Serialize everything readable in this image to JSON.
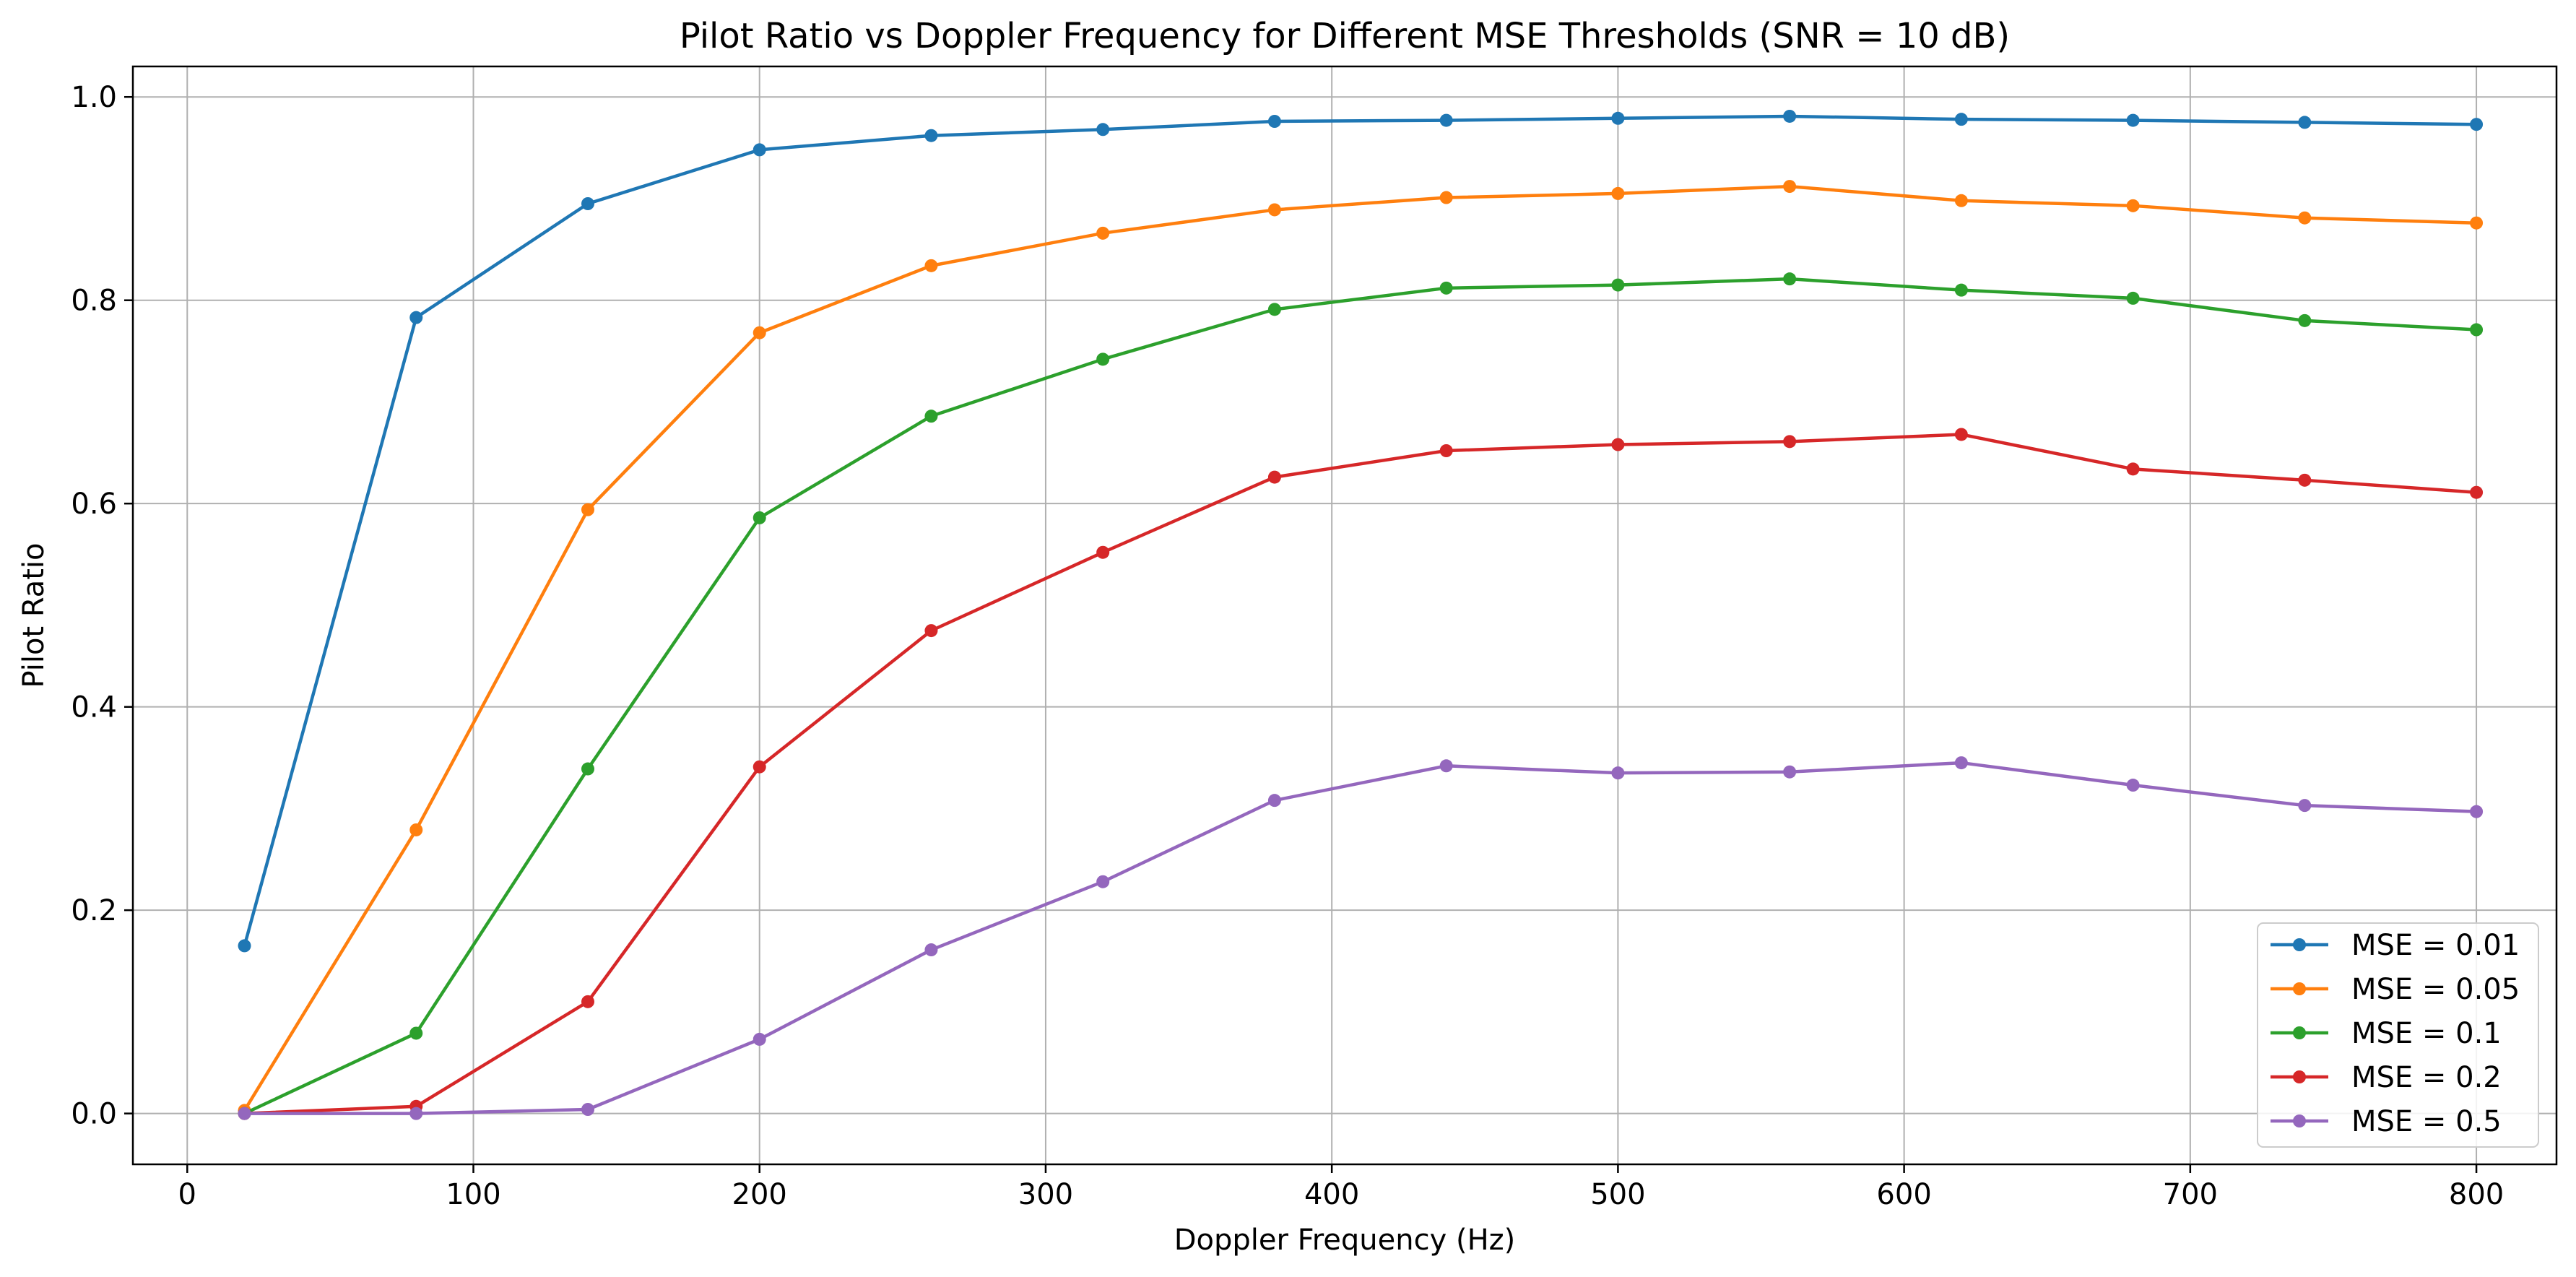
{
  "chart_data": {
    "type": "line",
    "title": "Pilot Ratio vs Doppler Frequency for Different MSE Thresholds (SNR = 10 dB)",
    "xlabel": "Doppler Frequency (Hz)",
    "ylabel": "Pilot Ratio",
    "xlim": [
      -19,
      828
    ],
    "ylim": [
      -0.05,
      1.03
    ],
    "xticks": [
      0,
      100,
      200,
      300,
      400,
      500,
      600,
      700,
      800
    ],
    "xtick_labels": [
      "0",
      "100",
      "200",
      "300",
      "400",
      "500",
      "600",
      "700",
      "800"
    ],
    "yticks": [
      0.0,
      0.2,
      0.4,
      0.6,
      0.8,
      1.0
    ],
    "ytick_labels": [
      "0.0",
      "0.2",
      "0.4",
      "0.6",
      "0.8",
      "1.0"
    ],
    "grid": true,
    "legend_position": "lower-right",
    "x": [
      20,
      80,
      140,
      200,
      260,
      320,
      380,
      440,
      500,
      560,
      620,
      680,
      740,
      800
    ],
    "series": [
      {
        "name": "MSE = 0.01",
        "color": "#1f77b4",
        "values": [
          0.165,
          0.783,
          0.895,
          0.948,
          0.962,
          0.968,
          0.976,
          0.977,
          0.979,
          0.981,
          0.978,
          0.977,
          0.975,
          0.973
        ]
      },
      {
        "name": "MSE = 0.05",
        "color": "#ff7f0e",
        "values": [
          0.003,
          0.279,
          0.594,
          0.768,
          0.834,
          0.866,
          0.889,
          0.901,
          0.905,
          0.912,
          0.898,
          0.893,
          0.881,
          0.876
        ]
      },
      {
        "name": "MSE = 0.1",
        "color": "#2ca02c",
        "values": [
          0.0,
          0.079,
          0.339,
          0.586,
          0.686,
          0.742,
          0.791,
          0.812,
          0.815,
          0.821,
          0.81,
          0.802,
          0.78,
          0.771
        ]
      },
      {
        "name": "MSE = 0.2",
        "color": "#d62728",
        "values": [
          0.0,
          0.007,
          0.11,
          0.341,
          0.475,
          0.552,
          0.626,
          0.652,
          0.658,
          0.661,
          0.668,
          0.634,
          0.623,
          0.611
        ]
      },
      {
        "name": "MSE = 0.5",
        "color": "#9467bd",
        "values": [
          0.0,
          0.0,
          0.004,
          0.073,
          0.161,
          0.228,
          0.308,
          0.342,
          0.335,
          0.336,
          0.345,
          0.323,
          0.303,
          0.297
        ]
      }
    ]
  }
}
